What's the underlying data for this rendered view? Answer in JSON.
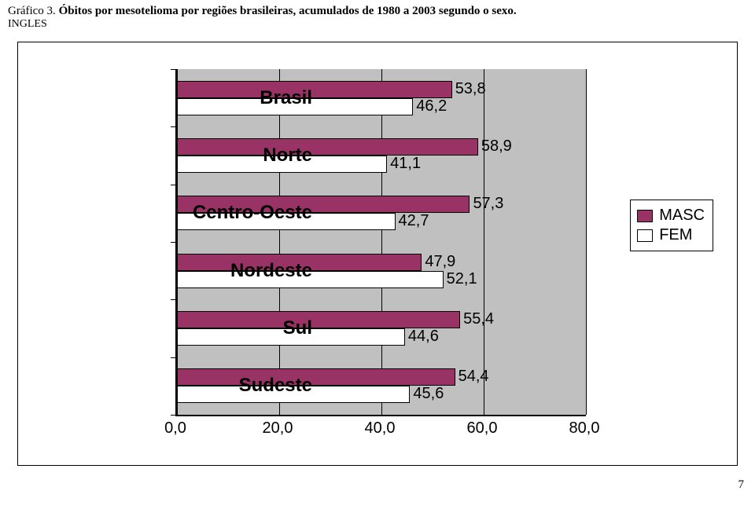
{
  "caption": {
    "lead": "Gráfico 3.",
    "rest": "Óbitos por mesotelioma por regiões brasileiras, acumulados de 1980 a 2003 segundo o sexo."
  },
  "subcaption": "INGLES",
  "chart": {
    "type": "bar",
    "orientation": "horizontal",
    "background_color": "#c0c0c0",
    "grid_color": "#000000",
    "xlim": [
      0,
      80
    ],
    "xtick_step": 20,
    "xticks": [
      "0,0",
      "20,0",
      "40,0",
      "60,0",
      "80,0"
    ],
    "bar_colors": {
      "masc": "#993366",
      "fem": "#ffffff"
    },
    "bar_border": "#000000",
    "label_font": "Arial",
    "label_fontsize_pt": 18,
    "value_fontsize_pt": 15,
    "categories": [
      {
        "name": "Brasil",
        "masc": 53.8,
        "fem": 46.2,
        "masc_label": "53,8",
        "fem_label": "46,2"
      },
      {
        "name": "Norte",
        "masc": 58.9,
        "fem": 41.1,
        "masc_label": "58,9",
        "fem_label": "41,1"
      },
      {
        "name": "Centro-Oeste",
        "masc": 57.3,
        "fem": 42.7,
        "masc_label": "57,3",
        "fem_label": "42,7"
      },
      {
        "name": "Nordeste",
        "masc": 47.9,
        "fem": 52.1,
        "masc_label": "47,9",
        "fem_label": "52,1"
      },
      {
        "name": "Sul",
        "masc": 55.4,
        "fem": 44.6,
        "masc_label": "55,4",
        "fem_label": "44,6"
      },
      {
        "name": "Sudeste",
        "masc": 54.4,
        "fem": 45.6,
        "masc_label": "54,4",
        "fem_label": "45,6"
      }
    ],
    "legend": {
      "items": [
        {
          "key": "masc",
          "label": "MASC"
        },
        {
          "key": "fem",
          "label": "FEM"
        }
      ]
    }
  },
  "page_number": "7"
}
